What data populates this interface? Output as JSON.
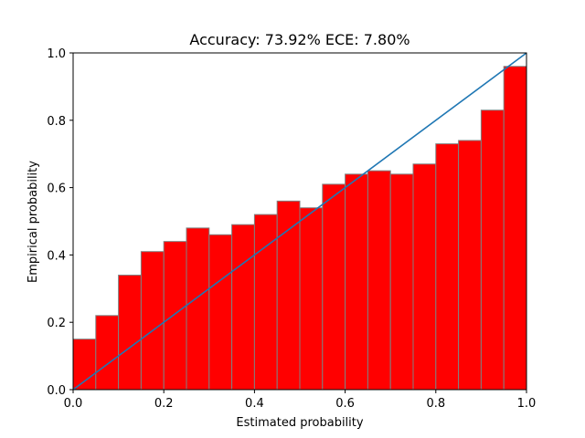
{
  "chart_data": {
    "type": "bar",
    "title": "Accuracy: 73.92% ECE: 7.80%",
    "xlabel": "Estimated probability",
    "ylabel": "Empirical probability",
    "xlim": [
      0,
      1
    ],
    "ylim": [
      0,
      1
    ],
    "bin_width": 0.05,
    "x": [
      0.0,
      0.05,
      0.1,
      0.15,
      0.2,
      0.25,
      0.3,
      0.35,
      0.4,
      0.45,
      0.5,
      0.55,
      0.6,
      0.65,
      0.7,
      0.75,
      0.8,
      0.85,
      0.9,
      0.95
    ],
    "values": [
      0.15,
      0.22,
      0.34,
      0.41,
      0.44,
      0.48,
      0.46,
      0.49,
      0.52,
      0.56,
      0.54,
      0.61,
      0.64,
      0.65,
      0.64,
      0.67,
      0.73,
      0.74,
      0.83,
      0.96
    ],
    "reference_line": {
      "x": [
        0,
        1
      ],
      "y": [
        0,
        1
      ]
    },
    "xticks": [
      {
        "value": 0,
        "label": "0.0"
      },
      {
        "value": 0.2,
        "label": "0.2"
      },
      {
        "value": 0.4,
        "label": "0.4"
      },
      {
        "value": 0.6,
        "label": "0.6"
      },
      {
        "value": 0.8,
        "label": "0.8"
      },
      {
        "value": 1,
        "label": "1.0"
      }
    ],
    "yticks": [
      {
        "value": 0,
        "label": "0.0"
      },
      {
        "value": 0.2,
        "label": "0.2"
      },
      {
        "value": 0.4,
        "label": "0.4"
      },
      {
        "value": 0.6,
        "label": "0.6"
      },
      {
        "value": 0.8,
        "label": "0.8"
      },
      {
        "value": 1,
        "label": "1.0"
      }
    ],
    "grid": false,
    "colors": {
      "bar_fill": "#ff0000",
      "bar_edge": "#808080",
      "line": "#1f77b4"
    }
  }
}
